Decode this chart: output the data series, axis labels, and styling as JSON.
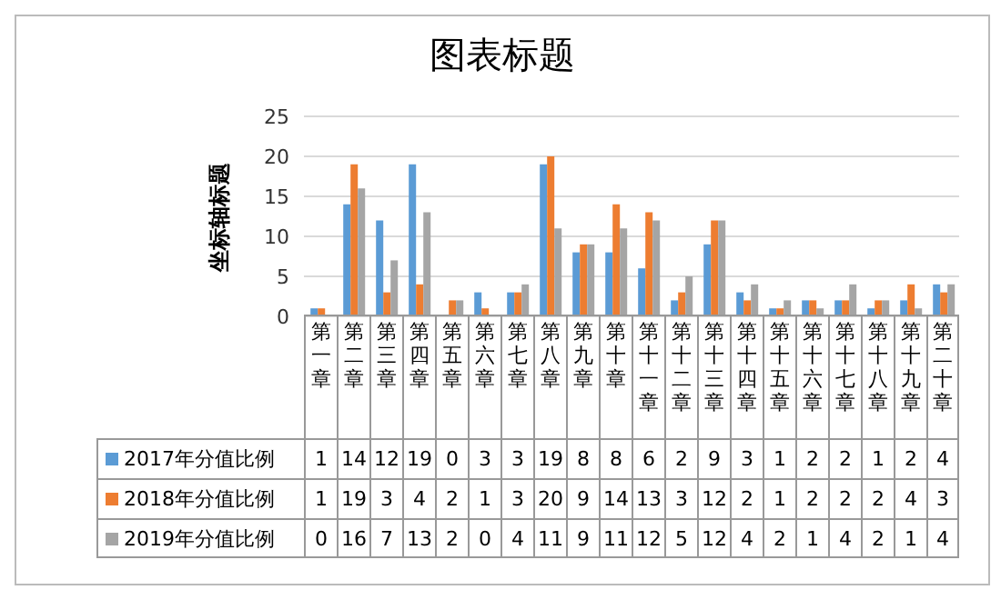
{
  "chart_data": {
    "type": "bar",
    "title": "图表标题",
    "ylabel": "坐标轴标题",
    "categories": [
      "第一章",
      "第二章",
      "第三章",
      "第四章",
      "第五章",
      "第六章",
      "第七章",
      "第八章",
      "第九章",
      "第十章",
      "第十一章",
      "第十二章",
      "第十三章",
      "第十四章",
      "第十五章",
      "第十六章",
      "第十七章",
      "第十八章",
      "第十九章",
      "第二十章"
    ],
    "series": [
      {
        "name": "2017年分值比例",
        "color": "#5b9bd5",
        "values": [
          1,
          14,
          12,
          19,
          0,
          3,
          3,
          19,
          8,
          8,
          6,
          2,
          9,
          3,
          1,
          2,
          2,
          1,
          2,
          4
        ]
      },
      {
        "name": "2018年分值比例",
        "color": "#ed7d31",
        "values": [
          1,
          19,
          3,
          4,
          2,
          1,
          3,
          20,
          9,
          14,
          13,
          3,
          12,
          2,
          1,
          2,
          2,
          2,
          4,
          3
        ]
      },
      {
        "name": "2019年分值比例",
        "color": "#a5a5a5",
        "values": [
          0,
          16,
          7,
          13,
          2,
          0,
          4,
          11,
          9,
          11,
          12,
          5,
          12,
          4,
          2,
          1,
          4,
          2,
          1,
          4
        ]
      }
    ],
    "ylim": [
      0,
      25
    ],
    "yticks": [
      0,
      5,
      10,
      15,
      20,
      25
    ],
    "grid": "y",
    "legend": "bottom",
    "data_labels": true
  }
}
